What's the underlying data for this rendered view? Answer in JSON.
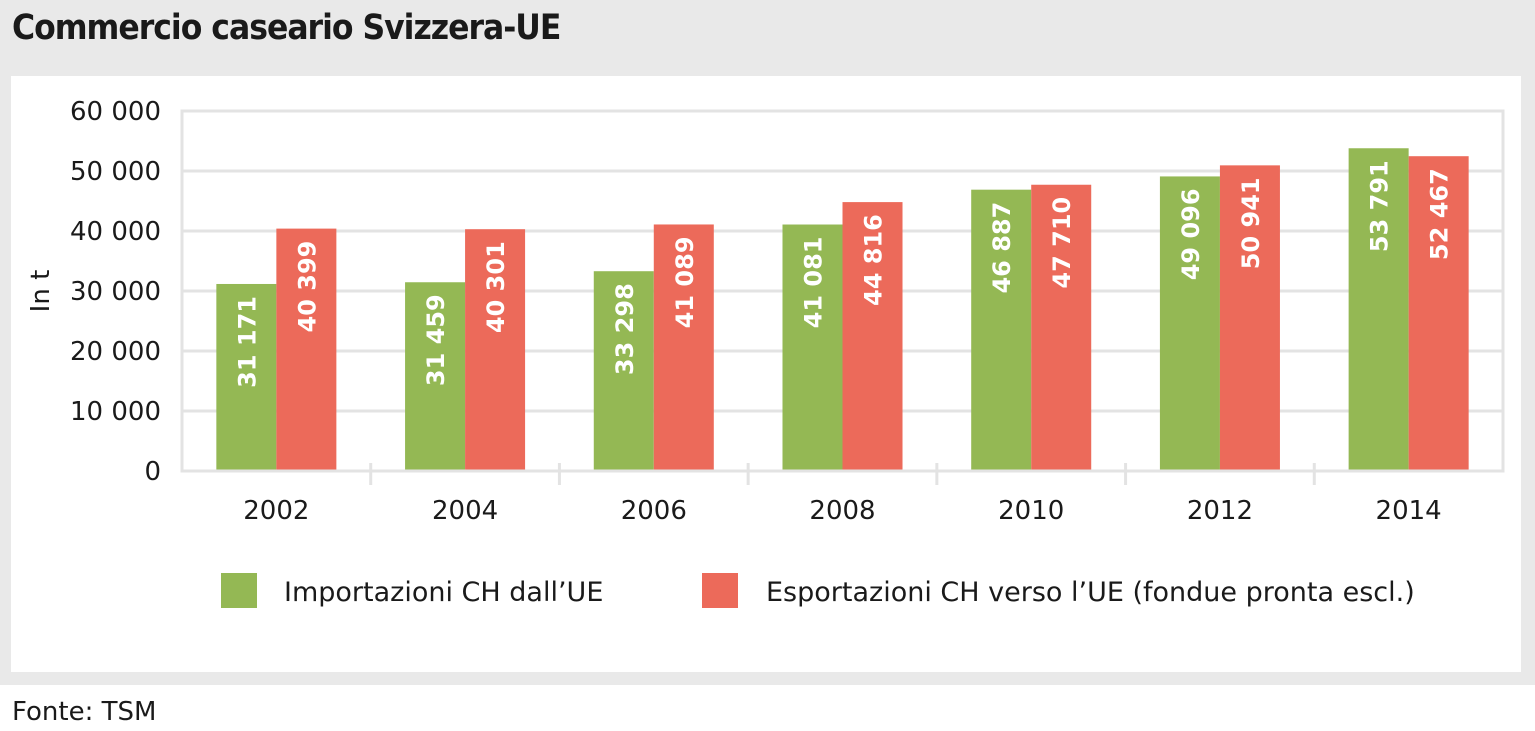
{
  "title": "Commercio caseario Svizzera-UE",
  "source": "Fonte: TSM",
  "colors": {
    "imports": "#94b854",
    "exports": "#ec6a5a",
    "grid": "#e3e3e3",
    "background": "#e9e9e9"
  },
  "chart_data": {
    "type": "bar",
    "title": "Commercio caseario Svizzera-UE",
    "xlabel": "",
    "ylabel": "In t",
    "ylim": [
      0,
      60000
    ],
    "yticks": [
      0,
      10000,
      20000,
      30000,
      40000,
      50000,
      60000
    ],
    "ytick_labels": [
      "0",
      "10 000",
      "20 000",
      "30 000",
      "40 000",
      "50 000",
      "60 000"
    ],
    "categories": [
      "2002",
      "2004",
      "2006",
      "2008",
      "2010",
      "2012",
      "2014"
    ],
    "series": [
      {
        "name": "Importazioni CH dall’UE",
        "color": "#94b854",
        "values": [
          31171,
          31459,
          33298,
          41081,
          46887,
          49096,
          53791
        ],
        "labels": [
          "31 171",
          "31 459",
          "33 298",
          "41 081",
          "46 887",
          "49 096",
          "53 791"
        ]
      },
      {
        "name": "Esportazioni CH verso l’UE (fondue pronta escl.)",
        "color": "#ec6a5a",
        "values": [
          40399,
          40301,
          41089,
          44816,
          47710,
          50941,
          52467
        ],
        "labels": [
          "40 399",
          "40 301",
          "41 089",
          "44 816",
          "47 710",
          "50 941",
          "52 467"
        ]
      }
    ],
    "grid": true,
    "legend": "bottom"
  }
}
